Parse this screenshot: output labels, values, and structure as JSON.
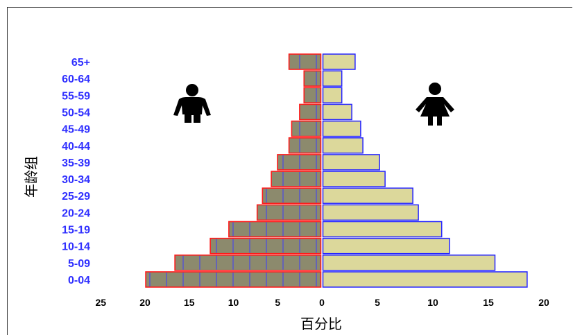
{
  "chart_data": {
    "type": "bar",
    "orientation": "horizontal",
    "categories": [
      "65+",
      "60-64",
      "55-59",
      "50-54",
      "45-49",
      "40-44",
      "35-39",
      "30-34",
      "25-29",
      "20-24",
      "15-19",
      "10-14",
      "5-09",
      "0-04"
    ],
    "series": [
      {
        "icon": "male-icon",
        "side": "left",
        "values": [
          3.6,
          1.9,
          1.9,
          2.4,
          3.3,
          3.6,
          4.9,
          5.6,
          6.6,
          7.2,
          10.4,
          12.5,
          16.5,
          19.8
        ]
      },
      {
        "icon": "female-icon",
        "side": "right",
        "values": [
          2.9,
          1.7,
          1.7,
          2.6,
          3.4,
          3.6,
          5.1,
          5.6,
          8.1,
          8.6,
          10.7,
          11.4,
          15.5,
          18.4
        ]
      }
    ],
    "x_ticks_left": [
      25,
      20,
      15,
      10,
      5,
      0
    ],
    "x_ticks_right": [
      5,
      10,
      15,
      20
    ],
    "xlim_left": [
      0,
      25
    ],
    "xlim_right": [
      0,
      20
    ],
    "xlabel": "百分比",
    "ylabel": "年龄组",
    "grid": false,
    "legend": "none"
  },
  "colors": {
    "left_fill": "#8c8a6d",
    "left_stroke": "#ff1a1a",
    "left_pattern": "#3c3cff",
    "right_fill": "#dcd89b",
    "right_stroke": "#2424ff",
    "category_label": "#3030ff",
    "tick_label": "#000000",
    "axis_title": "#000000",
    "icon": "#000000",
    "frame": "#333333"
  }
}
